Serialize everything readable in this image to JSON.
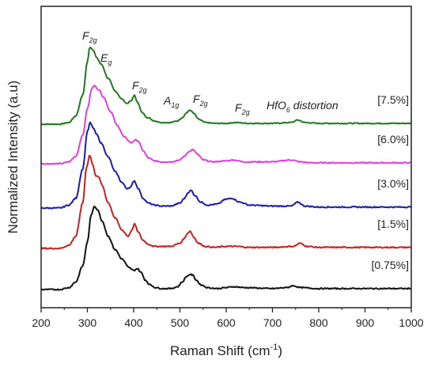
{
  "chart_data": {
    "type": "line",
    "xlabel_main": "Raman Shift (cm",
    "xlabel_sup": "-1",
    "xlabel_end": ")",
    "ylabel": "Normalized Intensity (a.u)",
    "xlim": [
      200,
      1000
    ],
    "xticks": [
      200,
      300,
      400,
      500,
      600,
      700,
      800,
      900,
      1000
    ],
    "yticks": "none",
    "series": [
      {
        "name": "[7.5%]",
        "color": "#1f7a1f",
        "x": [
          200,
          240,
          260,
          275,
          290,
          300,
          305,
          312,
          320,
          330,
          345,
          360,
          375,
          385,
          395,
          401,
          408,
          418,
          430,
          445,
          460,
          480,
          495,
          505,
          515,
          522,
          530,
          540,
          555,
          575,
          600,
          620,
          650,
          700,
          740,
          755,
          770,
          800,
          900,
          1000
        ],
        "y": [
          0.0,
          0.0,
          0.02,
          0.1,
          0.35,
          0.75,
          0.93,
          0.9,
          0.8,
          0.72,
          0.55,
          0.4,
          0.3,
          0.25,
          0.28,
          0.35,
          0.27,
          0.14,
          0.08,
          0.04,
          0.02,
          0.02,
          0.04,
          0.08,
          0.14,
          0.17,
          0.13,
          0.06,
          0.02,
          0.01,
          0.01,
          0.02,
          0.01,
          0.01,
          0.02,
          0.05,
          0.02,
          0.01,
          0.01,
          0.01
        ]
      },
      {
        "name": "[6.0%]",
        "color": "#e040e0",
        "x": [
          200,
          240,
          260,
          275,
          290,
          300,
          310,
          315,
          325,
          335,
          350,
          365,
          380,
          395,
          403,
          410,
          420,
          432,
          445,
          460,
          480,
          500,
          510,
          520,
          528,
          538,
          550,
          570,
          600,
          615,
          640,
          700,
          740,
          760,
          780,
          800,
          900,
          1000
        ],
        "y": [
          0.0,
          0.0,
          0.02,
          0.08,
          0.3,
          0.58,
          0.8,
          0.82,
          0.78,
          0.7,
          0.55,
          0.4,
          0.28,
          0.22,
          0.25,
          0.24,
          0.14,
          0.06,
          0.03,
          0.02,
          0.02,
          0.04,
          0.08,
          0.13,
          0.15,
          0.1,
          0.04,
          0.02,
          0.03,
          0.04,
          0.02,
          0.02,
          0.04,
          0.02,
          0.01,
          0.01,
          0.01,
          0.01
        ]
      },
      {
        "name": "[3.0%]",
        "color": "#1c1caf",
        "x": [
          200,
          240,
          260,
          275,
          290,
          300,
          306,
          312,
          320,
          330,
          345,
          360,
          375,
          385,
          393,
          401,
          410,
          420,
          432,
          445,
          460,
          480,
          500,
          510,
          518,
          524,
          532,
          545,
          560,
          580,
          600,
          612,
          630,
          650,
          700,
          740,
          755,
          770,
          800,
          900,
          1000
        ],
        "y": [
          0.0,
          0.0,
          0.03,
          0.1,
          0.4,
          0.78,
          0.87,
          0.82,
          0.75,
          0.66,
          0.52,
          0.37,
          0.26,
          0.2,
          0.21,
          0.28,
          0.2,
          0.1,
          0.05,
          0.03,
          0.02,
          0.02,
          0.05,
          0.1,
          0.16,
          0.18,
          0.13,
          0.06,
          0.03,
          0.04,
          0.09,
          0.1,
          0.06,
          0.03,
          0.02,
          0.02,
          0.06,
          0.02,
          0.01,
          0.01,
          0.01
        ]
      },
      {
        "name": "[1.5%]",
        "color": "#cc2020",
        "x": [
          200,
          240,
          260,
          275,
          290,
          298,
          305,
          312,
          318,
          325,
          332,
          345,
          360,
          375,
          388,
          396,
          402,
          410,
          420,
          432,
          445,
          460,
          480,
          500,
          510,
          516,
          522,
          530,
          540,
          555,
          575,
          600,
          620,
          650,
          700,
          745,
          760,
          775,
          800,
          900,
          1000
        ],
        "y": [
          0.0,
          0.0,
          0.03,
          0.12,
          0.45,
          0.8,
          0.92,
          0.82,
          0.72,
          0.7,
          0.62,
          0.45,
          0.3,
          0.18,
          0.12,
          0.18,
          0.24,
          0.16,
          0.08,
          0.04,
          0.02,
          0.02,
          0.02,
          0.05,
          0.1,
          0.15,
          0.17,
          0.11,
          0.05,
          0.02,
          0.01,
          0.02,
          0.02,
          0.01,
          0.01,
          0.02,
          0.05,
          0.02,
          0.01,
          0.01,
          0.01
        ]
      },
      {
        "name": "[0.75%]",
        "color": "#111111",
        "x": [
          200,
          240,
          260,
          275,
          290,
          300,
          308,
          315,
          322,
          332,
          345,
          360,
          375,
          390,
          400,
          408,
          416,
          425,
          435,
          448,
          460,
          480,
          495,
          505,
          515,
          522,
          528,
          535,
          545,
          560,
          580,
          600,
          615,
          640,
          700,
          730,
          745,
          760,
          800,
          900,
          1000
        ],
        "y": [
          0.0,
          0.0,
          0.02,
          0.08,
          0.25,
          0.5,
          0.78,
          0.88,
          0.84,
          0.72,
          0.56,
          0.42,
          0.32,
          0.23,
          0.2,
          0.22,
          0.18,
          0.1,
          0.05,
          0.02,
          0.01,
          0.01,
          0.03,
          0.08,
          0.14,
          0.16,
          0.15,
          0.1,
          0.05,
          0.02,
          0.01,
          0.02,
          0.03,
          0.02,
          0.01,
          0.02,
          0.04,
          0.02,
          0.01,
          0.01,
          0.01
        ]
      }
    ],
    "annotations": [
      {
        "text": "F",
        "sub": "2g",
        "near": "7.5% 300 peak"
      },
      {
        "text": "E",
        "sub": "g",
        "near": "7.5% shoulder"
      },
      {
        "text": "F",
        "sub": "2g",
        "near": "7.5% 400 peak"
      },
      {
        "text": "A",
        "sub": "1g",
        "near": "470"
      },
      {
        "text": "F",
        "sub": "2g",
        "near": "7.5% 520 peak"
      },
      {
        "text": "F",
        "sub": "2g",
        "near": "610"
      },
      {
        "text": "HfO",
        "sub": "6",
        "tail": " distortion",
        "near": "760"
      }
    ]
  }
}
